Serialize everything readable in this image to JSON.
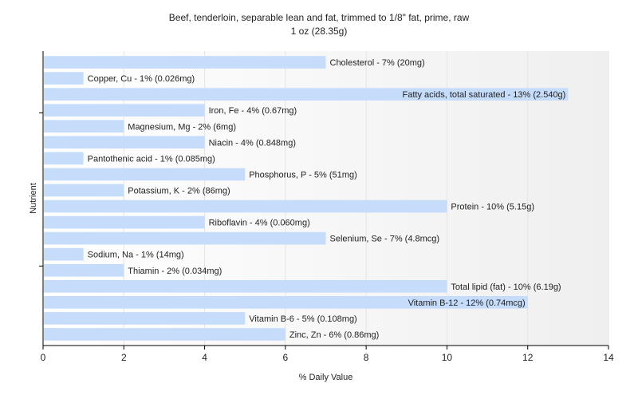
{
  "chart_data": {
    "type": "bar",
    "orientation": "horizontal",
    "title": "Beef, tenderloin, separable lean and fat, trimmed to 1/8\" fat, prime, raw",
    "subtitle": "1 oz (28.35g)",
    "xlabel": "% Daily Value",
    "ylabel": "Nutrient",
    "xlim": [
      0,
      14
    ],
    "xticks": [
      0,
      2,
      4,
      6,
      8,
      10,
      12,
      14
    ],
    "grid": "vertical",
    "bar_color": "#c5dcfb",
    "categories": [
      "Cholesterol",
      "Copper, Cu",
      "Fatty acids, total saturated",
      "Iron, Fe",
      "Magnesium, Mg",
      "Niacin",
      "Pantothenic acid",
      "Phosphorus, P",
      "Potassium, K",
      "Protein",
      "Riboflavin",
      "Selenium, Se",
      "Sodium, Na",
      "Thiamin",
      "Total lipid (fat)",
      "Vitamin B-12",
      "Vitamin B-6",
      "Zinc, Zn"
    ],
    "values": [
      7,
      1,
      13,
      4,
      2,
      4,
      1,
      5,
      2,
      10,
      4,
      7,
      1,
      2,
      10,
      12,
      5,
      6
    ],
    "labels": [
      "Cholesterol - 7% (20mg)",
      "Copper, Cu - 1% (0.026mg)",
      "Fatty acids, total saturated - 13% (2.540g)",
      "Iron, Fe - 4% (0.67mg)",
      "Magnesium, Mg - 2% (6mg)",
      "Niacin - 4% (0.848mg)",
      "Pantothenic acid - 1% (0.085mg)",
      "Phosphorus, P - 5% (51mg)",
      "Potassium, K - 2% (86mg)",
      "Protein - 10% (5.15g)",
      "Riboflavin - 4% (0.060mg)",
      "Selenium, Se - 7% (4.8mcg)",
      "Sodium, Na - 1% (14mg)",
      "Thiamin - 2% (0.034mg)",
      "Total lipid (fat) - 10% (6.19g)",
      "Vitamin B-12 - 12% (0.74mcg)",
      "Vitamin B-6 - 5% (0.108mg)",
      "Zinc, Zn - 6% (0.86mg)"
    ]
  }
}
